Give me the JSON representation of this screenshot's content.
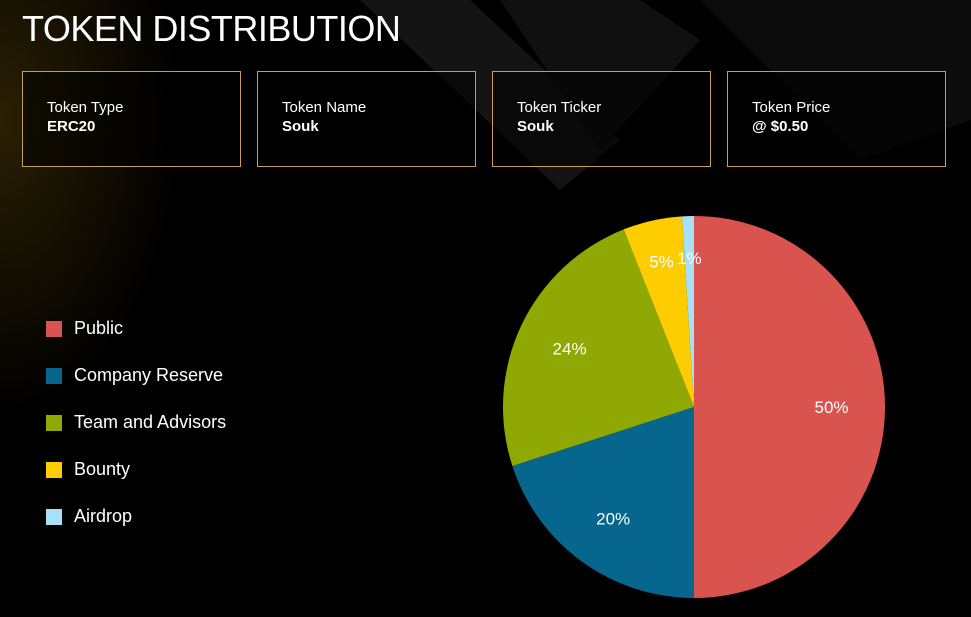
{
  "title": "TOKEN DISTRIBUTION",
  "cards": [
    {
      "label": "Token Type",
      "value": "ERC20"
    },
    {
      "label": "Token Name",
      "value": "Souk"
    },
    {
      "label": "Token Ticker",
      "value": "Souk"
    },
    {
      "label": "Token Price",
      "value": "@ $0.50"
    }
  ],
  "chart_data": {
    "type": "pie",
    "title": "",
    "legend_position": "left",
    "slices": [
      {
        "name": "Public",
        "value": 50,
        "label": "50%",
        "color": "#d9534f"
      },
      {
        "name": "Company Reserve",
        "value": 20,
        "label": "20%",
        "color": "#07668d"
      },
      {
        "name": "Team and Advisors",
        "value": 24,
        "label": "24%",
        "color": "#8fa804"
      },
      {
        "name": "Bounty",
        "value": 5,
        "label": "5%",
        "color": "#fecd01"
      },
      {
        "name": "Airdrop",
        "value": 1,
        "label": "1%",
        "color": "#a8e0f5"
      }
    ]
  }
}
